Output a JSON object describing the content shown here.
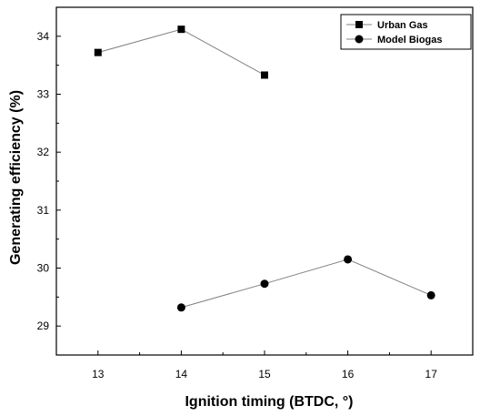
{
  "chart_data": {
    "type": "line",
    "xlabel": "Ignition timing (BTDC, °)",
    "ylabel": "Generating efficiency (%)",
    "xlim": [
      12.5,
      17.5
    ],
    "ylim": [
      28.5,
      34.5
    ],
    "x_ticks": [
      "13",
      "14",
      "15",
      "16",
      "17"
    ],
    "y_ticks": [
      "29",
      "30",
      "31",
      "32",
      "33",
      "34"
    ],
    "grid": false,
    "legend_position": "top-right",
    "series": [
      {
        "name": "Urban Gas",
        "marker": "square",
        "color": "#000000",
        "line_color": "#808080",
        "x": [
          13,
          14,
          15
        ],
        "y": [
          33.72,
          34.12,
          33.33
        ]
      },
      {
        "name": "Model Biogas",
        "marker": "circle",
        "color": "#000000",
        "line_color": "#808080",
        "x": [
          14,
          15,
          16,
          17
        ],
        "y": [
          29.32,
          29.73,
          30.15,
          29.53
        ]
      }
    ]
  }
}
